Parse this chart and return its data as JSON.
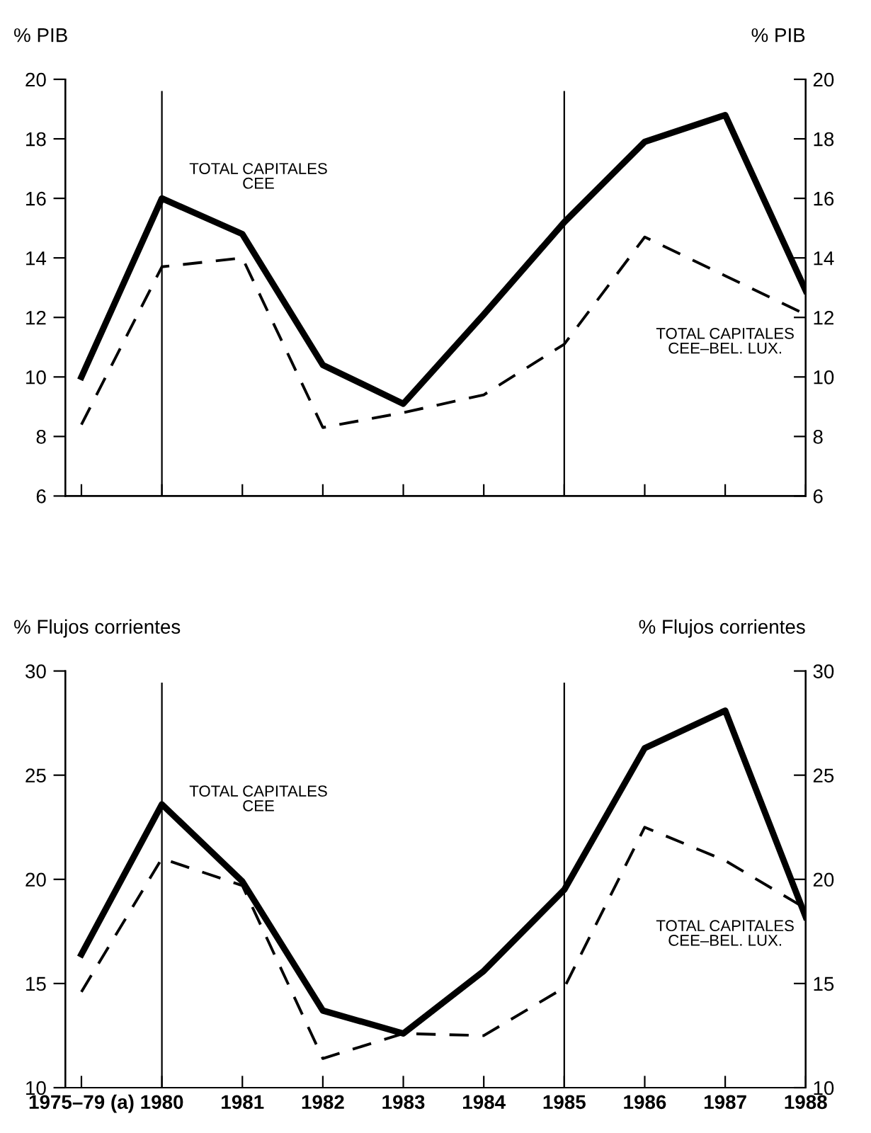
{
  "chart_data": [
    {
      "type": "line",
      "ylabel": "% PIB",
      "y2label": "% PIB",
      "categories": [
        null,
        null,
        null,
        null,
        null,
        null,
        null,
        null,
        null,
        null
      ],
      "series": [
        {
          "name": "TOTAL CAPITALES\nCEE",
          "color": "#000000",
          "line_style": "solid",
          "values": [
            10.0,
            16.0,
            14.8,
            10.4,
            9.1,
            12.1,
            15.2,
            17.9,
            18.8,
            12.9
          ]
        },
        {
          "name": "TOTAL CAPITALES\nCEE–BEL. LUX.",
          "color": "#000000",
          "line_style": "dashed",
          "values": [
            8.4,
            13.7,
            14.0,
            8.3,
            8.8,
            9.4,
            11.1,
            14.7,
            13.4,
            12.1
          ]
        }
      ],
      "ylim": [
        6,
        20
      ],
      "yticks": [
        6,
        8,
        10,
        12,
        14,
        16,
        18,
        20
      ],
      "y2lim": [
        6,
        20
      ],
      "y2ticks": [
        6,
        8,
        10,
        12,
        14,
        16,
        18,
        20
      ],
      "tick_labels": "y",
      "grid": false,
      "legend": false,
      "marker": "none"
    },
    {
      "type": "line",
      "ylabel": "% Flujos corrientes",
      "y2label": "% Flujos corrientes",
      "categories": [
        "1975–79 (a)",
        "1980",
        "1981",
        "1982",
        "1983",
        "1984",
        "1985",
        "1986",
        "1987",
        "1988"
      ],
      "series": [
        {
          "name": "TOTAL CAPITALES\nCEE",
          "color": "#000000",
          "line_style": "solid",
          "values": [
            16.4,
            23.6,
            19.9,
            13.7,
            12.6,
            15.6,
            19.5,
            26.3,
            28.1,
            18.2
          ]
        },
        {
          "name": "TOTAL CAPITALES\nCEE–BEL. LUX.",
          "color": "#000000",
          "line_style": "dashed",
          "values": [
            14.6,
            21.0,
            19.7,
            11.4,
            12.6,
            12.5,
            14.8,
            22.5,
            20.9,
            18.6
          ]
        }
      ],
      "ylim": [
        10,
        30
      ],
      "yticks": [
        10,
        15,
        20,
        25,
        30
      ],
      "y2lim": [
        10,
        30
      ],
      "y2ticks": [
        10,
        15,
        20,
        25,
        30
      ],
      "ref_lines": [
        {
          "axis": "x",
          "value": "1980",
          "color": "#000000"
        },
        {
          "axis": "x",
          "value": "1985",
          "color": "#000000"
        }
      ],
      "grid": false,
      "legend": false,
      "marker": "none"
    }
  ]
}
